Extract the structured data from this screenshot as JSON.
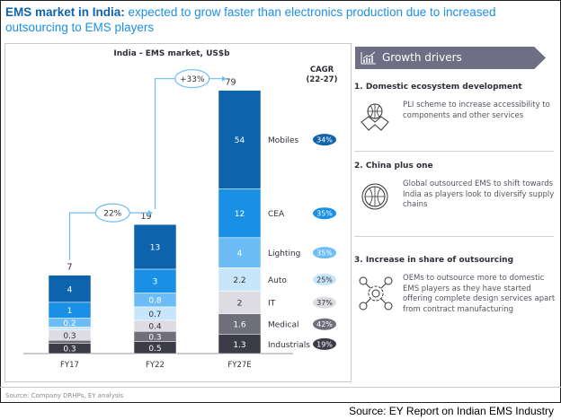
{
  "header": {
    "title_bold": "EMS market in India:",
    "title_rest": " expected to grow faster than electronics production due to increased outsourcing to EMS players"
  },
  "chart_data": {
    "type": "bar",
    "stacked": true,
    "title": "India - EMS market, US$b",
    "categories": [
      "FY17",
      "FY22",
      "FY27E"
    ],
    "totals": [
      7,
      19,
      79
    ],
    "growth": [
      {
        "from": "FY17",
        "to": "FY22",
        "label": "22%"
      },
      {
        "from": "FY22",
        "to": "FY27E",
        "label": "+33%"
      }
    ],
    "cagr_title": "CAGR (22-27)",
    "cagr_title_lines": [
      "CAGR",
      "(22-27)"
    ],
    "series": [
      {
        "name": "Mobiles",
        "values": [
          4,
          13,
          54
        ],
        "cagr": "34%",
        "color": "#0e63ad"
      },
      {
        "name": "CEA",
        "values": [
          1,
          3,
          12
        ],
        "cagr": "35%",
        "color": "#1a8fe6"
      },
      {
        "name": "Lighting",
        "values": [
          0.2,
          0.8,
          4
        ],
        "cagr": "35%",
        "color": "#6cbcf5"
      },
      {
        "name": "Auto",
        "values": [
          null,
          0.7,
          2.2
        ],
        "cagr": "25%",
        "color": "#c8e6fb"
      },
      {
        "name": "IT",
        "values": [
          0.3,
          0.4,
          2
        ],
        "cagr": "37%",
        "color": "#dcdce2"
      },
      {
        "name": "Medical",
        "values": [
          null,
          0.3,
          1.6
        ],
        "cagr": "42%",
        "color": "#6f6f7c"
      },
      {
        "name": "Industrials",
        "values": [
          0.3,
          0.5,
          1.3
        ],
        "cagr": "19%",
        "color": "#3c3c48"
      }
    ],
    "grid": false,
    "legend": "right, inline labels"
  },
  "source_left": "Source: Company DRHPs, EY analysis",
  "source_right": "Source: EY Report on Indian EMS Industry",
  "drivers": {
    "header": "Growth drivers",
    "header_icon": "chart-icon",
    "items": [
      {
        "title": "1. Domestic ecosystem development",
        "text": "PLI scheme to increase accessibility to components and other services",
        "icon": "globe-handshake-icon"
      },
      {
        "title": "2. China plus one",
        "text": "Global outsourced EMS to shift towards India as players look to diversify supply chains",
        "icon": "globe-icon"
      },
      {
        "title": "3. Increase in share of outsourcing",
        "text": "OEMs to outsource more to domestic EMS players as they have started offering complete design services apart from contract manufacturing",
        "icon": "network-people-icon"
      }
    ]
  }
}
